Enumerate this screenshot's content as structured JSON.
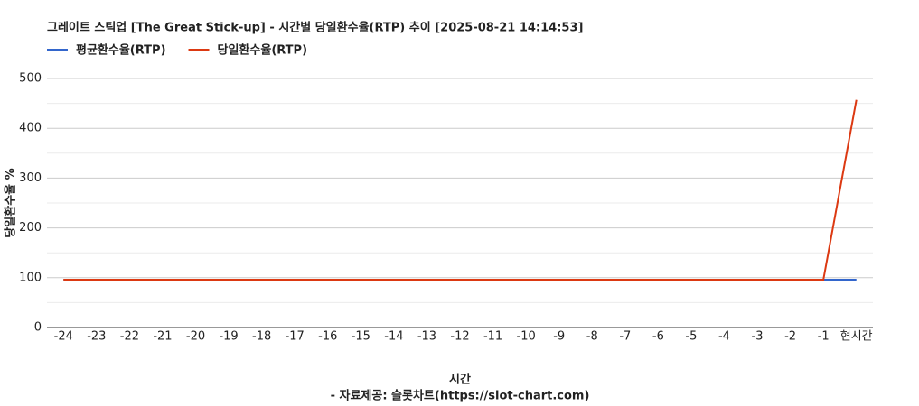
{
  "chart_data": {
    "type": "line",
    "title": "그레이트 스틱업 [The Great Stick-up] - 시간별 당일환수율(RTP) 추이 [2025-08-21 14:14:53]",
    "x_label": "시간",
    "x_sublabel": "- 자료제공: 슬롯차트(https://slot-chart.com)",
    "y_label": "당일환수율 %",
    "categories": [
      "-24",
      "-23",
      "-22",
      "-21",
      "-20",
      "-19",
      "-18",
      "-17",
      "-16",
      "-15",
      "-14",
      "-13",
      "-12",
      "-11",
      "-10",
      "-9",
      "-8",
      "-7",
      "-6",
      "-5",
      "-4",
      "-3",
      "-2",
      "-1",
      "현시간"
    ],
    "series": [
      {
        "name": "평균환수율(RTP)",
        "color": "#3366cc",
        "values": [
          96,
          96,
          96,
          96,
          96,
          96,
          96,
          96,
          96,
          96,
          96,
          96,
          96,
          96,
          96,
          96,
          96,
          96,
          96,
          96,
          96,
          96,
          96,
          96,
          96
        ]
      },
      {
        "name": "당일환수율(RTP)",
        "color": "#dc3912",
        "values": [
          96,
          96,
          96,
          96,
          96,
          96,
          96,
          96,
          96,
          96,
          96,
          96,
          96,
          96,
          96,
          96,
          96,
          96,
          96,
          96,
          96,
          96,
          96,
          96,
          457
        ]
      }
    ],
    "ylim": [
      0,
      500
    ],
    "yticks": [
      0,
      100,
      200,
      300,
      400,
      500
    ],
    "minor_gridlines": [
      50,
      150,
      250,
      350,
      450
    ],
    "grid": true,
    "legend": "top-left"
  }
}
